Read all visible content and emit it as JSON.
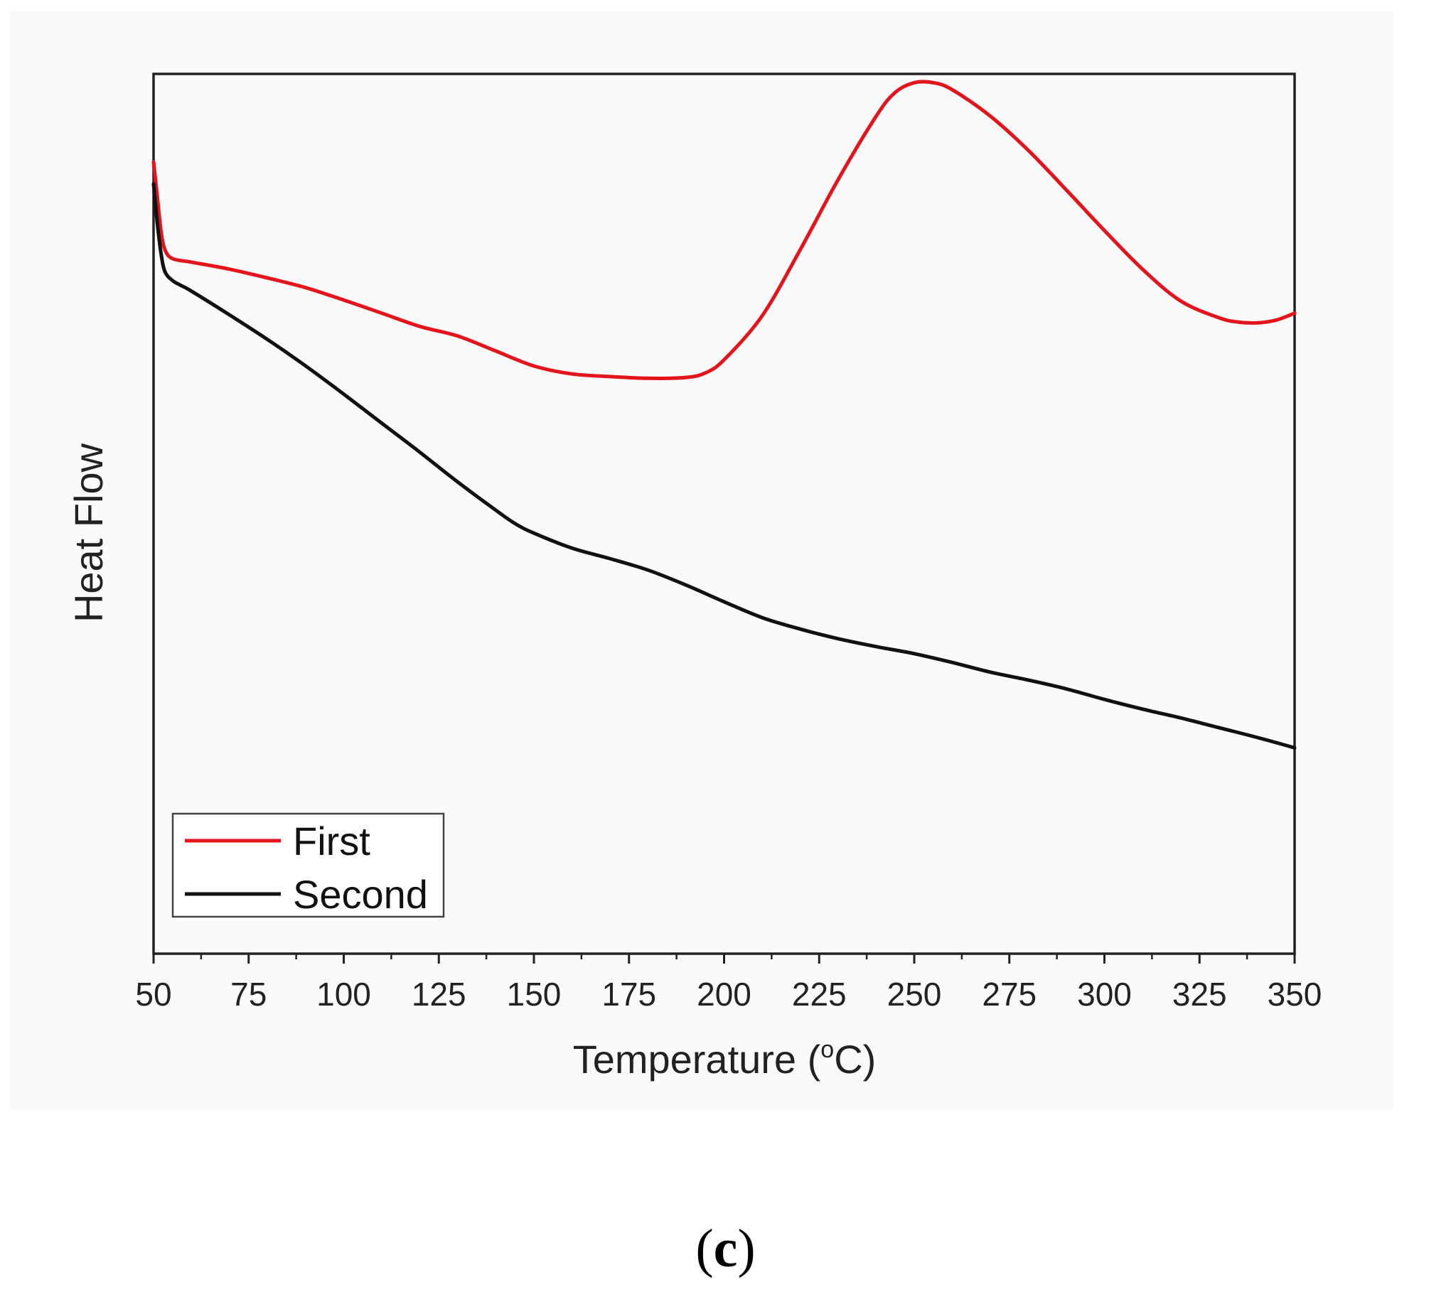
{
  "chart_data": {
    "type": "line",
    "title": "",
    "xlabel": "Temperature (",
    "xlabel_degree": "o",
    "xlabel_unit": "C)",
    "ylabel": "Heat Flow",
    "xlim": [
      50,
      350
    ],
    "ylim": [
      0,
      100
    ],
    "x_ticks": [
      50,
      75,
      100,
      125,
      150,
      175,
      200,
      225,
      250,
      275,
      300,
      325,
      350
    ],
    "y_ticks_shown": false,
    "legend_position": "bottom-left",
    "series": [
      {
        "name": "First",
        "color": "#e3141b",
        "points": [
          [
            50,
            90
          ],
          [
            51,
            86
          ],
          [
            52,
            82
          ],
          [
            53,
            80
          ],
          [
            55,
            79
          ],
          [
            60,
            78.6
          ],
          [
            70,
            77.8
          ],
          [
            80,
            76.8
          ],
          [
            90,
            75.7
          ],
          [
            100,
            74.3
          ],
          [
            110,
            72.8
          ],
          [
            120,
            71.3
          ],
          [
            130,
            70.2
          ],
          [
            140,
            68.5
          ],
          [
            150,
            66.8
          ],
          [
            160,
            65.9
          ],
          [
            170,
            65.6
          ],
          [
            180,
            65.4
          ],
          [
            190,
            65.5
          ],
          [
            195,
            66.0
          ],
          [
            200,
            67.5
          ],
          [
            210,
            72.5
          ],
          [
            220,
            80.0
          ],
          [
            230,
            88.0
          ],
          [
            240,
            95.2
          ],
          [
            245,
            97.9
          ],
          [
            250,
            99.0
          ],
          [
            255,
            99.0
          ],
          [
            260,
            98.2
          ],
          [
            270,
            95.2
          ],
          [
            280,
            91.3
          ],
          [
            290,
            86.8
          ],
          [
            300,
            82.2
          ],
          [
            310,
            77.8
          ],
          [
            320,
            74.2
          ],
          [
            330,
            72.3
          ],
          [
            335,
            71.8
          ],
          [
            340,
            71.7
          ],
          [
            345,
            72.0
          ],
          [
            350,
            72.8
          ]
        ]
      },
      {
        "name": "Second",
        "color": "#111111",
        "points": [
          [
            50,
            87.5
          ],
          [
            51,
            83
          ],
          [
            52,
            79.5
          ],
          [
            53,
            77.5
          ],
          [
            55,
            76.5
          ],
          [
            57,
            76.0
          ],
          [
            60,
            75.3
          ],
          [
            70,
            72.6
          ],
          [
            80,
            69.8
          ],
          [
            90,
            66.8
          ],
          [
            100,
            63.6
          ],
          [
            110,
            60.3
          ],
          [
            120,
            57.0
          ],
          [
            130,
            53.6
          ],
          [
            140,
            50.4
          ],
          [
            145,
            48.9
          ],
          [
            150,
            47.8
          ],
          [
            160,
            46.1
          ],
          [
            170,
            44.9
          ],
          [
            180,
            43.6
          ],
          [
            190,
            41.9
          ],
          [
            200,
            40.0
          ],
          [
            210,
            38.2
          ],
          [
            220,
            36.9
          ],
          [
            230,
            35.8
          ],
          [
            240,
            34.9
          ],
          [
            250,
            34.1
          ],
          [
            260,
            33.1
          ],
          [
            270,
            32.0
          ],
          [
            280,
            31.1
          ],
          [
            290,
            30.1
          ],
          [
            300,
            28.9
          ],
          [
            310,
            27.8
          ],
          [
            320,
            26.8
          ],
          [
            330,
            25.7
          ],
          [
            340,
            24.6
          ],
          [
            350,
            23.4
          ]
        ]
      }
    ]
  },
  "caption": {
    "open": "(",
    "letter": "c",
    "close": ")"
  }
}
